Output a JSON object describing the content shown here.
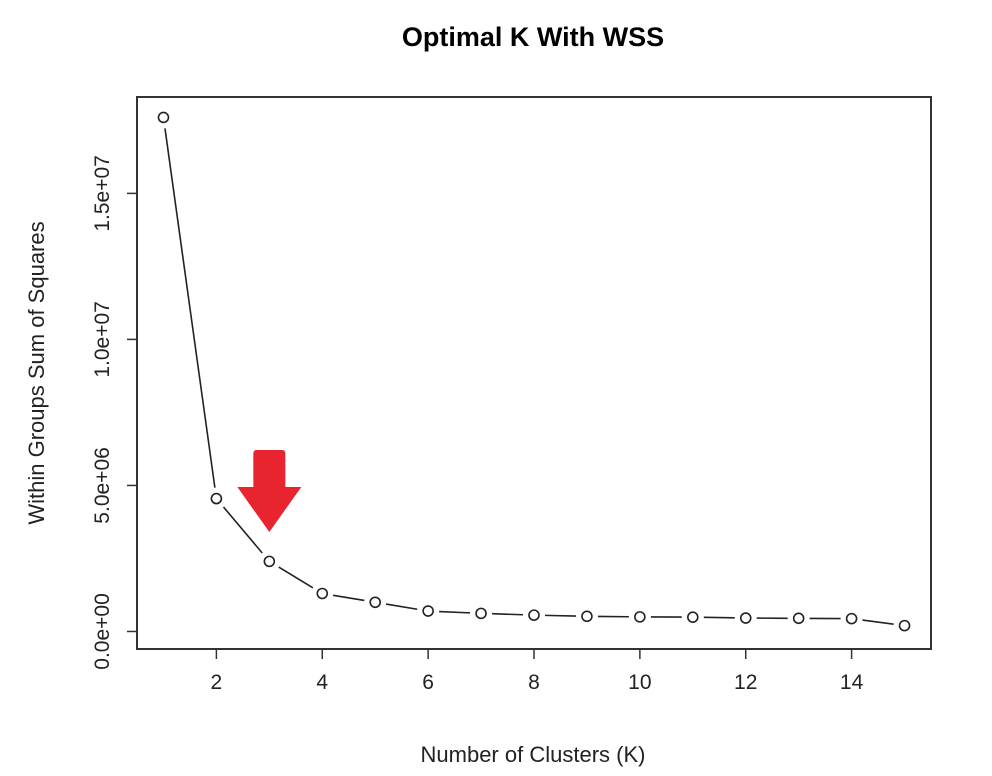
{
  "chart_data": {
    "type": "line",
    "title": "Optimal K With WSS",
    "xlabel": "Number of Clusters (K)",
    "ylabel": "Within Groups Sum of Squares",
    "x": [
      1,
      2,
      3,
      4,
      5,
      6,
      7,
      8,
      9,
      10,
      11,
      12,
      13,
      14,
      15
    ],
    "values": [
      17600000,
      4550000,
      2400000,
      1300000,
      1000000,
      700000,
      620000,
      560000,
      520000,
      500000,
      490000,
      460000,
      450000,
      440000,
      200000
    ],
    "xlim": [
      0.5,
      15.5
    ],
    "ylim": [
      -600000,
      18300000
    ],
    "x_ticks": [
      2,
      4,
      6,
      8,
      10,
      12,
      14
    ],
    "x_tick_labels": [
      "2",
      "4",
      "6",
      "8",
      "10",
      "12",
      "14"
    ],
    "y_ticks": [
      0,
      5000000,
      10000000,
      15000000
    ],
    "y_tick_labels": [
      "0.0e+00",
      "5.0e+06",
      "1.0e+07",
      "1.5e+07"
    ],
    "grid": false,
    "annotation": {
      "type": "arrow",
      "x": 3,
      "color": "#e8242f"
    }
  }
}
